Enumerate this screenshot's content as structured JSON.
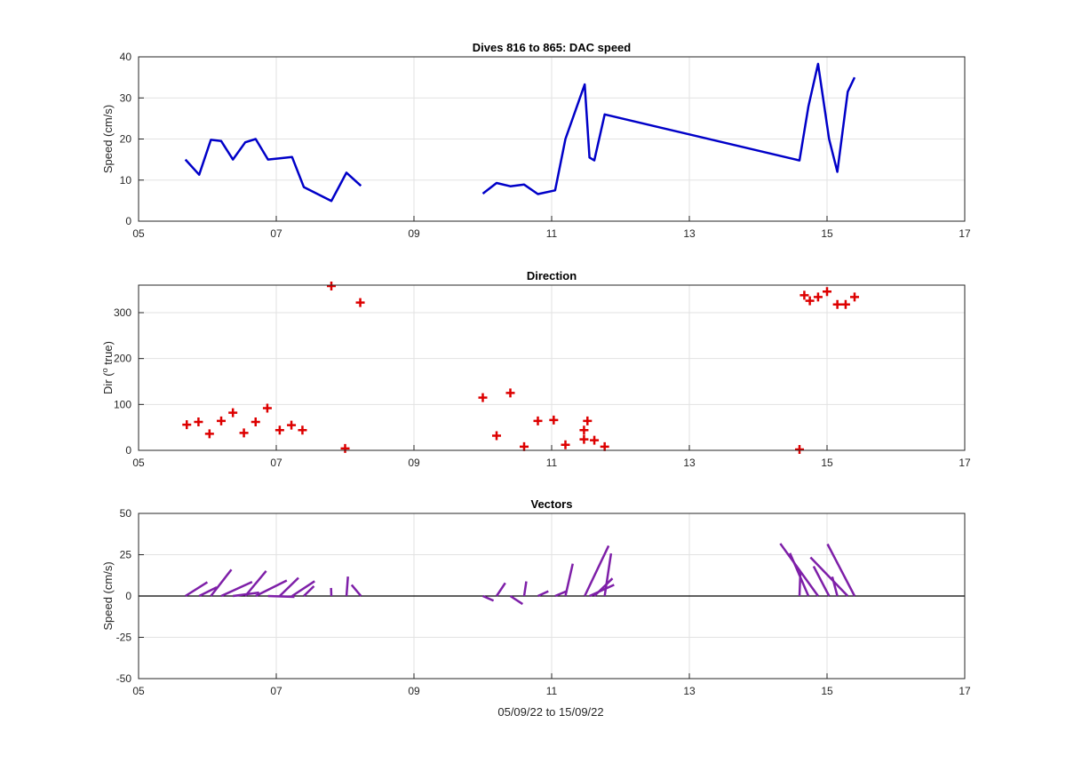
{
  "figure_xlabel": "05/09/22 to 15/09/22",
  "x_ticks": [
    "05",
    "07",
    "09",
    "11",
    "13",
    "15",
    "17"
  ],
  "colors": {
    "speed": "#0000c8",
    "direction": "#dd0000",
    "vectors": "#7e1fa8",
    "grid": "#e2e2e2",
    "axis": "#262626"
  },
  "chart_data": [
    {
      "type": "line",
      "title": "Dives 816 to 865: DAC speed",
      "xlabel": "",
      "ylabel": "Speed (cm/s)",
      "xlim": [
        5,
        17
      ],
      "ylim": [
        0,
        40
      ],
      "y_ticks": [
        "0",
        "10",
        "20",
        "30",
        "40"
      ],
      "grid": true,
      "series": [
        {
          "x": [
            5.68,
            5.88,
            6.05,
            6.2,
            6.37,
            6.55,
            6.7,
            6.88,
            7.05,
            7.23,
            7.4,
            7.8,
            8.02,
            8.23
          ],
          "y": [
            15,
            11.3,
            19.8,
            19.5,
            15,
            19.2,
            20,
            15,
            15.3,
            15.6,
            8.3,
            4.9,
            11.8,
            8.6
          ]
        },
        {
          "x": [
            10.0,
            10.2,
            10.4,
            10.6,
            10.8,
            11.05,
            11.2,
            11.48,
            11.55,
            11.62,
            11.77,
            14.6,
            14.73,
            14.87,
            15.03,
            15.15,
            15.3,
            15.4
          ],
          "y": [
            6.7,
            9.3,
            8.5,
            8.9,
            6.6,
            7.5,
            20,
            33.3,
            15.5,
            14.8,
            26,
            14.8,
            28,
            38.3,
            20,
            12,
            31.5,
            35
          ]
        }
      ]
    },
    {
      "type": "scatter",
      "title": "Direction",
      "xlabel": "",
      "ylabel": "Dir (o true)",
      "xlim": [
        5,
        17
      ],
      "ylim": [
        0,
        360
      ],
      "y_ticks": [
        "0",
        "100",
        "200",
        "300"
      ],
      "grid": true,
      "marker": "+",
      "points": [
        [
          5.7,
          56
        ],
        [
          5.87,
          62
        ],
        [
          6.03,
          36
        ],
        [
          6.2,
          64
        ],
        [
          6.37,
          82
        ],
        [
          6.53,
          38
        ],
        [
          6.7,
          62
        ],
        [
          6.87,
          92
        ],
        [
          7.05,
          44
        ],
        [
          7.22,
          55
        ],
        [
          7.38,
          44
        ],
        [
          7.8,
          358
        ],
        [
          8.0,
          4
        ],
        [
          8.22,
          322
        ],
        [
          10.0,
          115
        ],
        [
          10.2,
          32
        ],
        [
          10.4,
          125
        ],
        [
          10.6,
          8
        ],
        [
          10.8,
          64
        ],
        [
          11.03,
          66
        ],
        [
          11.2,
          12
        ],
        [
          11.47,
          44
        ],
        [
          11.47,
          24
        ],
        [
          11.52,
          64
        ],
        [
          11.62,
          22
        ],
        [
          11.77,
          8
        ],
        [
          14.6,
          2
        ],
        [
          14.67,
          338
        ],
        [
          14.75,
          326
        ],
        [
          14.87,
          334
        ],
        [
          15.0,
          346
        ],
        [
          15.15,
          318
        ],
        [
          15.27,
          318
        ],
        [
          15.4,
          334
        ]
      ]
    },
    {
      "type": "vector",
      "title": "Vectors",
      "xlabel": "05/09/22 to 15/09/22",
      "ylabel": "Speed (cm/s)",
      "xlim": [
        5,
        17
      ],
      "ylim": [
        -50,
        50
      ],
      "y_ticks": [
        "-50",
        "-25",
        "0",
        "25",
        "50"
      ],
      "grid": true,
      "vectors": [
        [
          5.68,
          15,
          56
        ],
        [
          5.88,
          11.3,
          62
        ],
        [
          6.05,
          19.8,
          36
        ],
        [
          6.2,
          19.5,
          64
        ],
        [
          6.37,
          15,
          82
        ],
        [
          6.55,
          19.2,
          38
        ],
        [
          6.7,
          20,
          62
        ],
        [
          6.88,
          15,
          92
        ],
        [
          7.05,
          15.3,
          44
        ],
        [
          7.23,
          15.6,
          55
        ],
        [
          7.4,
          8.3,
          44
        ],
        [
          7.8,
          4.9,
          358
        ],
        [
          8.02,
          11.8,
          4
        ],
        [
          8.23,
          8.6,
          322
        ],
        [
          10.0,
          6.7,
          115
        ],
        [
          10.2,
          9.3,
          32
        ],
        [
          10.4,
          8.5,
          125
        ],
        [
          10.6,
          8.9,
          8
        ],
        [
          10.8,
          6.6,
          64
        ],
        [
          11.05,
          7.5,
          66
        ],
        [
          11.2,
          20,
          12
        ],
        [
          11.48,
          33.3,
          24
        ],
        [
          11.55,
          15.5,
          64
        ],
        [
          11.62,
          14.8,
          44
        ],
        [
          11.77,
          26,
          8
        ],
        [
          14.6,
          14.8,
          2
        ],
        [
          14.73,
          28,
          338
        ],
        [
          14.87,
          38.3,
          326
        ],
        [
          15.03,
          20,
          334
        ],
        [
          15.15,
          12,
          346
        ],
        [
          15.3,
          31.5,
          318
        ],
        [
          15.4,
          35,
          334
        ]
      ]
    }
  ]
}
